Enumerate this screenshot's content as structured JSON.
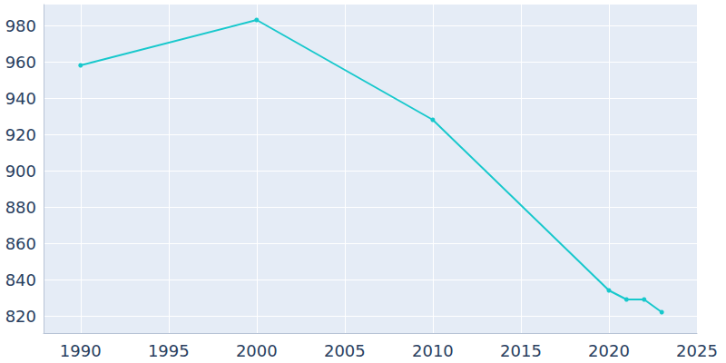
{
  "chart_data": {
    "type": "line",
    "x": [
      1990,
      2000,
      2010,
      2020,
      2021,
      2022,
      2023
    ],
    "values": [
      958,
      983,
      928,
      834,
      829,
      829,
      822
    ],
    "color": "#17c8cc",
    "marker": "circle",
    "xlim": [
      1987.9,
      2025
    ],
    "xticks": [
      1990,
      1995,
      2000,
      2005,
      2010,
      2015,
      2020,
      2025
    ],
    "ylim": [
      810.5,
      991.5
    ],
    "yticks": [
      820,
      840,
      860,
      880,
      900,
      920,
      940,
      960,
      980
    ],
    "grid": true
  }
}
